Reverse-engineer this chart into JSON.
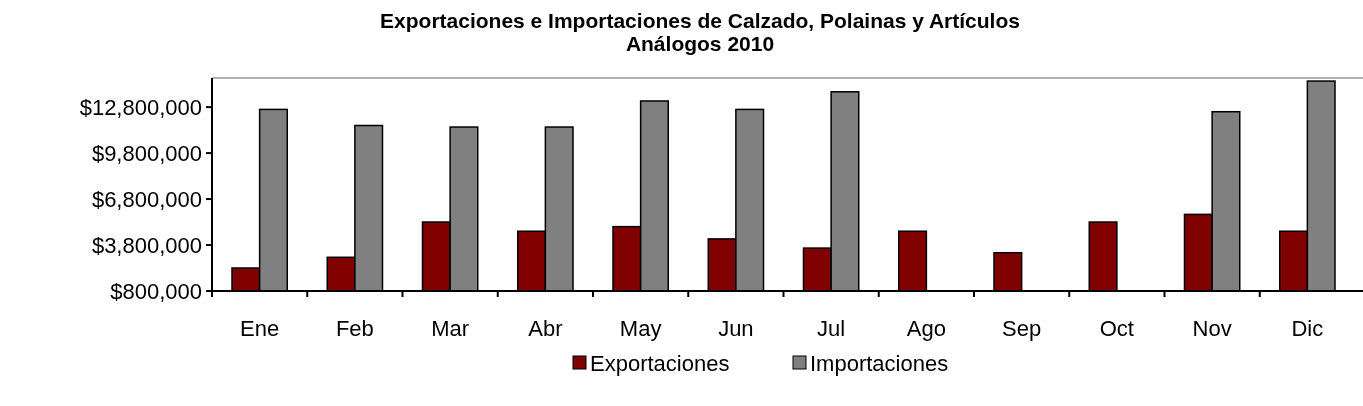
{
  "chart_data": {
    "type": "bar",
    "title": "Exportaciones e Importaciones de Calzado, Polainas y Artículos Análogos  2010",
    "categories": [
      "Ene",
      "Feb",
      "Mar",
      "Abr",
      "May",
      "Jun",
      "Jul",
      "Ago",
      "Sep",
      "Oct",
      "Nov",
      "Dic"
    ],
    "series": [
      {
        "name": "Exportaciones",
        "color": "#800000",
        "values": [
          2300000,
          3000000,
          5300000,
          4700000,
          5000000,
          4200000,
          3600000,
          4700000,
          3300000,
          5300000,
          5800000,
          4700000
        ]
      },
      {
        "name": "Importaciones",
        "color": "#808080",
        "values": [
          12650000,
          11600000,
          11500000,
          11500000,
          13200000,
          12650000,
          13800000,
          null,
          null,
          null,
          12500000,
          14500000
        ]
      }
    ],
    "ylim": [
      800000,
      14700000
    ],
    "yticks": [
      {
        "value": 800000,
        "label": "$800,000"
      },
      {
        "value": 3800000,
        "label": "$3,800,000"
      },
      {
        "value": 6800000,
        "label": "$6,800,000"
      },
      {
        "value": 9800000,
        "label": "$9,800,000"
      },
      {
        "value": 12800000,
        "label": "$12,800,000"
      }
    ],
    "grid": false,
    "legend": "bottom"
  }
}
